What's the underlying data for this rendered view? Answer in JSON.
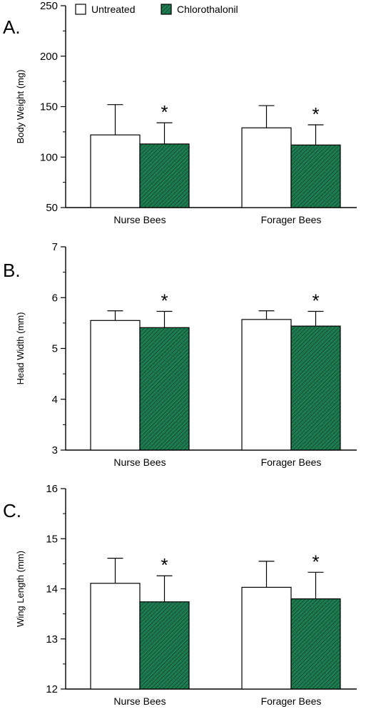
{
  "legend": {
    "items": [
      {
        "label": "Untreated",
        "color": "#ffffff"
      },
      {
        "label": "Chlorothalonil",
        "color": "#1e7a4f"
      }
    ]
  },
  "colors": {
    "untreated": "#ffffff",
    "chlorothalonil": "#1e7a4f",
    "hatch": "#0f4a2e",
    "axis": "#000000"
  },
  "chart_data": [
    {
      "panel_label": "A.",
      "type": "bar",
      "ylabel": "Body Weight (mg)",
      "ylim": [
        50,
        250
      ],
      "yticks": [
        50,
        100,
        150,
        200,
        250
      ],
      "minor_ticks": true,
      "categories": [
        "Nurse Bees",
        "Forager Bees"
      ],
      "series": [
        {
          "name": "Untreated",
          "values": [
            122,
            129
          ],
          "errors": [
            30,
            22
          ],
          "significant": [
            false,
            false
          ]
        },
        {
          "name": "Chlorothalonil",
          "values": [
            113,
            112
          ],
          "errors": [
            21,
            20
          ],
          "significant": [
            true,
            true
          ]
        }
      ],
      "significance_marker": "*"
    },
    {
      "panel_label": "B.",
      "type": "bar",
      "ylabel": "Head Width (mm)",
      "ylim": [
        3,
        7
      ],
      "yticks": [
        3,
        4,
        5,
        6,
        7
      ],
      "minor_ticks": true,
      "categories": [
        "Nurse Bees",
        "Forager Bees"
      ],
      "series": [
        {
          "name": "Untreated",
          "values": [
            5.55,
            5.57
          ],
          "errors": [
            0.19,
            0.17
          ],
          "significant": [
            false,
            false
          ]
        },
        {
          "name": "Chlorothalonil",
          "values": [
            5.41,
            5.44
          ],
          "errors": [
            0.32,
            0.29
          ],
          "significant": [
            true,
            true
          ]
        }
      ],
      "significance_marker": "*"
    },
    {
      "panel_label": "C.",
      "type": "bar",
      "ylabel": "Wing Length (mm)",
      "ylim": [
        12,
        16
      ],
      "yticks": [
        12,
        13,
        14,
        15,
        16
      ],
      "minor_ticks": true,
      "categories": [
        "Nurse Bees",
        "Forager Bees"
      ],
      "series": [
        {
          "name": "Untreated",
          "values": [
            14.11,
            14.03
          ],
          "errors": [
            0.5,
            0.52
          ],
          "significant": [
            false,
            false
          ]
        },
        {
          "name": "Chlorothalonil",
          "values": [
            13.74,
            13.8
          ],
          "errors": [
            0.52,
            0.53
          ],
          "significant": [
            true,
            true
          ]
        }
      ],
      "significance_marker": "*"
    }
  ]
}
